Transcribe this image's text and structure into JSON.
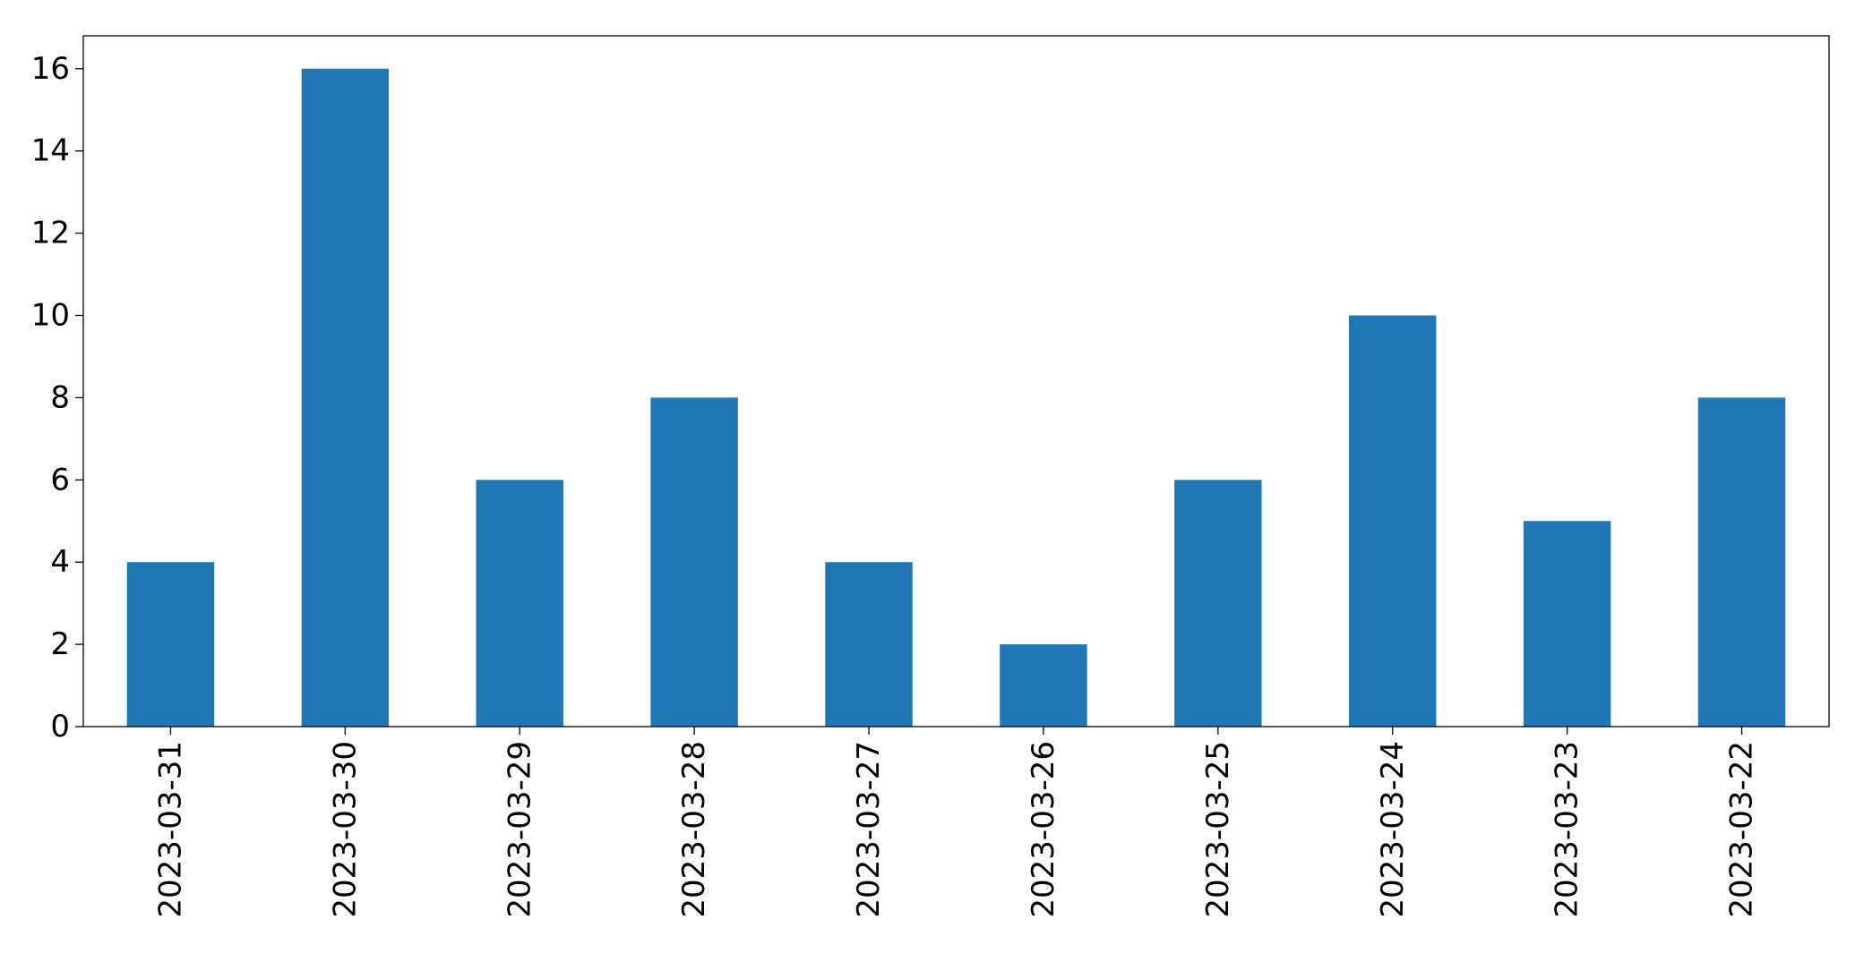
{
  "chart_data": {
    "type": "bar",
    "categories": [
      "2023-03-31",
      "2023-03-30",
      "2023-03-29",
      "2023-03-28",
      "2023-03-27",
      "2023-03-26",
      "2023-03-25",
      "2023-03-24",
      "2023-03-23",
      "2023-03-22"
    ],
    "values": [
      4,
      16,
      6,
      8,
      4,
      2,
      6,
      10,
      5,
      8
    ],
    "color": "#1f77b4",
    "ylim": [
      0,
      16.8
    ],
    "yticks": [
      0,
      2,
      4,
      6,
      8,
      10,
      12,
      14,
      16
    ],
    "grid": false
  }
}
